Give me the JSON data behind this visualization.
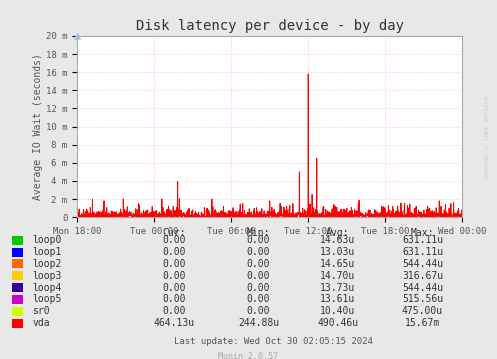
{
  "title": "Disk latency per device - by day",
  "ylabel": "Average IO Wait (seconds)",
  "bg_color": "#e8e8e8",
  "plot_bg_color": "#ffffff",
  "grid_color": "#ffaaaa",
  "border_color": "#aaaaaa",
  "ytick_labels": [
    "0",
    "2 m",
    "4 m",
    "6 m",
    "8 m",
    "10 m",
    "12 m",
    "14 m",
    "16 m",
    "18 m",
    "20 m"
  ],
  "ytick_values": [
    0,
    0.002,
    0.004,
    0.006,
    0.008,
    0.01,
    0.012,
    0.014,
    0.016,
    0.018,
    0.02
  ],
  "xtick_labels": [
    "Mon 18:00",
    "Tue 00:00",
    "Tue 06:00",
    "Tue 12:00",
    "Tue 18:00",
    "Wed 00:00"
  ],
  "ymax": 0.02,
  "legend_entries": [
    {
      "label": "loop0",
      "color": "#00cc00"
    },
    {
      "label": "loop1",
      "color": "#0000ff"
    },
    {
      "label": "loop2",
      "color": "#ff6600"
    },
    {
      "label": "loop3",
      "color": "#ffcc00"
    },
    {
      "label": "loop4",
      "color": "#330099"
    },
    {
      "label": "loop5",
      "color": "#cc00cc"
    },
    {
      "label": "sr0",
      "color": "#ccff00"
    },
    {
      "label": "vda",
      "color": "#ff0000"
    }
  ],
  "legend_cols": [
    {
      "header": "Cur:",
      "values": [
        "0.00",
        "0.00",
        "0.00",
        "0.00",
        "0.00",
        "0.00",
        "0.00",
        "464.13u"
      ]
    },
    {
      "header": "Min:",
      "values": [
        "0.00",
        "0.00",
        "0.00",
        "0.00",
        "0.00",
        "0.00",
        "0.00",
        "244.88u"
      ]
    },
    {
      "header": "Avg:",
      "values": [
        "14.63u",
        "13.03u",
        "14.65u",
        "14.70u",
        "13.73u",
        "13.61u",
        "10.40u",
        "490.46u"
      ]
    },
    {
      "header": "Max:",
      "values": [
        "631.11u",
        "631.11u",
        "544.44u",
        "316.67u",
        "544.44u",
        "515.56u",
        "475.00u",
        "15.67m"
      ]
    }
  ],
  "footer_text": "Last update: Wed Oct 30 02:05:15 2024",
  "munin_text": "Munin 2.0.57",
  "watermark": "RRDTOOL / TOBI OETIKER"
}
